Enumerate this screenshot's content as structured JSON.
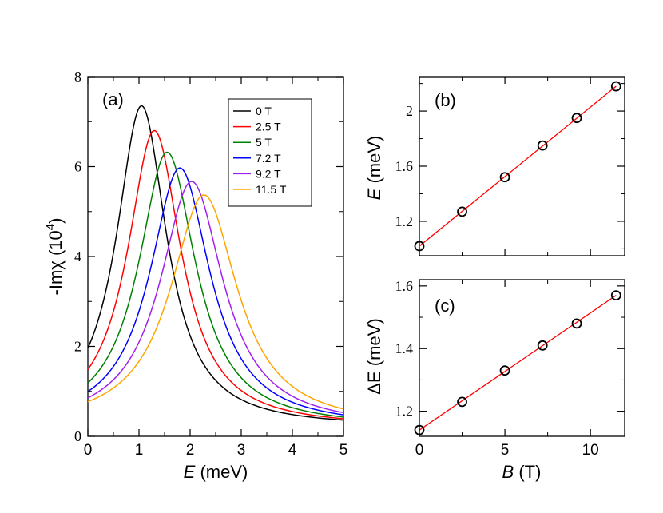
{
  "chart_data": [
    {
      "panel": "(a)",
      "type": "line",
      "xlabel_var": "E",
      "xlabel_unit": " (meV)",
      "ylabel": "-Imχ (10",
      "ylabel_exp": "4",
      "ylabel_close": ")",
      "xlim": [
        0,
        5
      ],
      "ylim": [
        0,
        8
      ],
      "xticks": [
        "0",
        "1",
        "2",
        "3",
        "4",
        "5"
      ],
      "yticks": [
        "0",
        "2",
        "4",
        "6",
        "8"
      ],
      "series": [
        {
          "name": "0 T",
          "color": "#000000",
          "peak_x": 1.05,
          "peak_y": 7.35,
          "width": 0.6,
          "floor": 0.2
        },
        {
          "name": "2.5 T",
          "color": "#ff0000",
          "peak_x": 1.3,
          "peak_y": 6.8,
          "width": 0.64,
          "floor": 0.2
        },
        {
          "name": "5 T",
          "color": "#008000",
          "peak_x": 1.55,
          "peak_y": 6.32,
          "width": 0.68,
          "floor": 0.2
        },
        {
          "name": "7.2 T",
          "color": "#0000ff",
          "peak_x": 1.8,
          "peak_y": 5.97,
          "width": 0.72,
          "floor": 0.2
        },
        {
          "name": "9.2 T",
          "color": "#a020f0",
          "peak_x": 2.03,
          "peak_y": 5.67,
          "width": 0.75,
          "floor": 0.2
        },
        {
          "name": "11.5 T",
          "color": "#ffa500",
          "peak_x": 2.27,
          "peak_y": 5.37,
          "width": 0.8,
          "floor": 0.2
        }
      ]
    },
    {
      "panel": "(b)",
      "type": "scatter",
      "ylabel_var": "E",
      "ylabel_unit": " (meV)",
      "xlim": [
        0,
        12
      ],
      "ylim": [
        0.95,
        2.25
      ],
      "yticks": [
        "1.2",
        "1.6",
        "2"
      ],
      "ytick_values": [
        1.2,
        1.6,
        2.0
      ],
      "x": [
        0,
        2.5,
        5,
        7.2,
        9.2,
        11.5
      ],
      "y": [
        1.02,
        1.27,
        1.52,
        1.75,
        1.95,
        2.18
      ],
      "fit": {
        "x": [
          0,
          11.5
        ],
        "y": [
          1.02,
          2.18
        ],
        "color": "#ff0000"
      }
    },
    {
      "panel": "(c)",
      "type": "scatter",
      "ylabel_var": "ΔE",
      "ylabel_unit": " (meV)",
      "xlabel_var": "B",
      "xlabel_unit": " (T)",
      "xlim": [
        0,
        12
      ],
      "ylim": [
        1.12,
        1.62
      ],
      "xticks": [
        "0",
        "5",
        "10"
      ],
      "xtick_values": [
        0,
        5,
        10
      ],
      "yticks": [
        "1.2",
        "1.4",
        "1.6"
      ],
      "ytick_values": [
        1.2,
        1.4,
        1.6
      ],
      "x": [
        0,
        2.5,
        5,
        7.2,
        9.2,
        11.5
      ],
      "y": [
        1.14,
        1.23,
        1.33,
        1.41,
        1.48,
        1.57
      ],
      "fit": {
        "x": [
          0,
          11.5
        ],
        "y": [
          1.14,
          1.57
        ],
        "color": "#ff0000"
      }
    }
  ]
}
